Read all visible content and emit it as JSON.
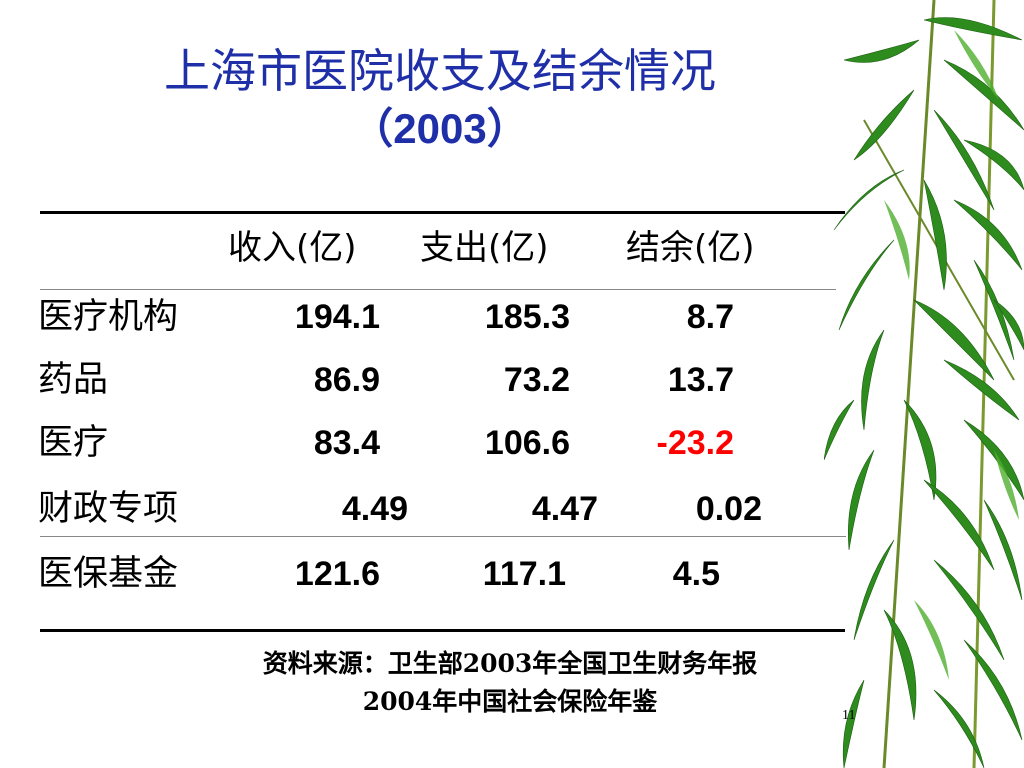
{
  "title": {
    "line1": "上海市医院收支及结余情况",
    "line2": "（2003）"
  },
  "table": {
    "headers": [
      "收入(亿)",
      "支出(亿)",
      "结余(亿)"
    ],
    "rows": [
      {
        "label": "医疗机构",
        "income": "194.1",
        "expense": "185.3",
        "balance": "8.7"
      },
      {
        "label": "药品",
        "income": "86.9",
        "expense": "73.2",
        "balance": "13.7"
      },
      {
        "label": "医疗",
        "income": "83.4",
        "expense": "106.6",
        "balance": "-23.2"
      },
      {
        "label": "财政专项",
        "income": "4.49",
        "expense": "4.47",
        "balance": "0.02"
      },
      {
        "label": "医保基金",
        "income": "121.6",
        "expense": "117.1",
        "balance": "4.5"
      }
    ]
  },
  "source": {
    "line1": "资料来源：卫生部2003年全国卫生财务年报",
    "line2": "2004年中国社会保险年鉴"
  },
  "page_number": "11",
  "colors": {
    "title": "#1f2fa8",
    "negative": "#ff0000",
    "bamboo_leaf": "#2e8b1e"
  },
  "decoration": "bamboo-leaves"
}
